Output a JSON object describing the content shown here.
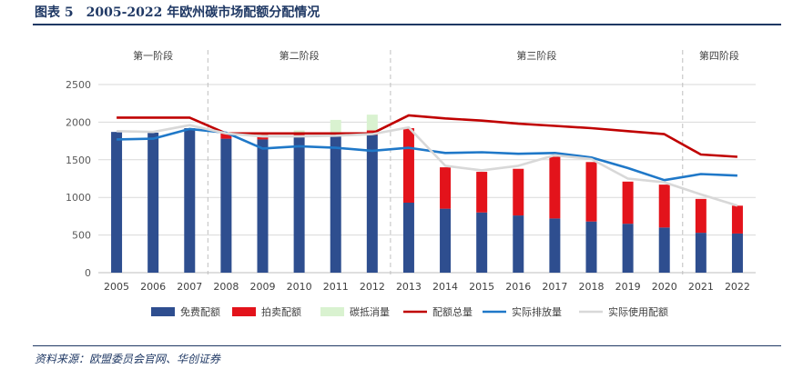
{
  "header": {
    "title": "图表 5　2005-2022 年欧州碳市场配额分配情况"
  },
  "footer": {
    "source": "资料来源：欧盟委员会官网、华创证券"
  },
  "chart_data": {
    "type": "bar",
    "stacked": true,
    "categories": [
      "2005",
      "2006",
      "2007",
      "2008",
      "2009",
      "2010",
      "2011",
      "2012",
      "2013",
      "2014",
      "2015",
      "2016",
      "2017",
      "2018",
      "2019",
      "2020",
      "2021",
      "2022"
    ],
    "ylim": [
      0,
      2500
    ],
    "yticks": [
      0,
      500,
      1000,
      1500,
      2000,
      2500
    ],
    "grid": true,
    "legend_position": "bottom",
    "phases": [
      {
        "label": "第一阶段",
        "start": "2005",
        "end": "2007"
      },
      {
        "label": "第二阶段",
        "start": "2008",
        "end": "2012"
      },
      {
        "label": "第三阶段",
        "start": "2013",
        "end": "2020"
      },
      {
        "label": "第四阶段",
        "start": "2021",
        "end": "2022"
      }
    ],
    "series": [
      {
        "name": "免费配额",
        "kind": "bar",
        "color": "#2e4e8f",
        "values": [
          1870,
          1860,
          1920,
          1780,
          1770,
          1800,
          1810,
          1830,
          930,
          850,
          800,
          760,
          720,
          680,
          650,
          600,
          530,
          520
        ]
      },
      {
        "name": "拍卖配额",
        "kind": "bar",
        "color": "#e3131b",
        "values": [
          0,
          0,
          0,
          70,
          60,
          40,
          50,
          60,
          990,
          550,
          540,
          620,
          820,
          790,
          560,
          570,
          450,
          370
        ]
      },
      {
        "name": "碳抵消量",
        "kind": "bar",
        "color": "#d9f2d0",
        "values": [
          0,
          0,
          0,
          0,
          30,
          50,
          170,
          210,
          0,
          0,
          0,
          0,
          0,
          0,
          0,
          0,
          0,
          0
        ]
      },
      {
        "name": "配额总量",
        "kind": "line",
        "color": "#c00000",
        "values": [
          2060,
          2060,
          2060,
          1850,
          1850,
          1850,
          1850,
          1850,
          2090,
          2050,
          2020,
          1980,
          1950,
          1920,
          1880,
          1840,
          1570,
          1540
        ]
      },
      {
        "name": "实际排放量",
        "kind": "line",
        "color": "#1f78c8",
        "values": [
          1770,
          1780,
          1910,
          1860,
          1650,
          1680,
          1660,
          1620,
          1660,
          1590,
          1600,
          1580,
          1590,
          1530,
          1390,
          1230,
          1310,
          1290
        ]
      },
      {
        "name": "实际使用配额",
        "kind": "line",
        "color": "#d8d8d8",
        "values": [
          1880,
          1870,
          1960,
          1850,
          1810,
          1810,
          1820,
          1840,
          1930,
          1420,
          1360,
          1420,
          1560,
          1510,
          1250,
          1200,
          1040,
          890
        ]
      }
    ]
  }
}
